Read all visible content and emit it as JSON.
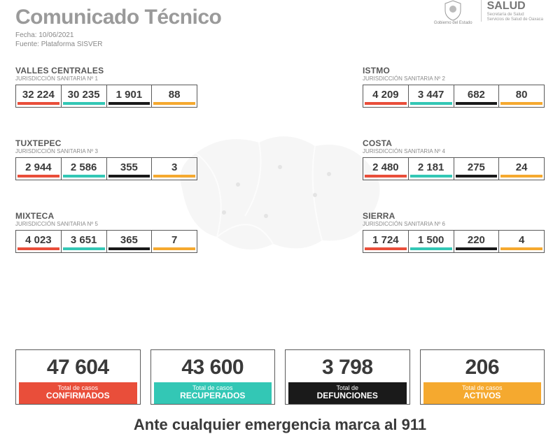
{
  "header": {
    "title": "Comunicado Técnico",
    "date_label": "Fecha:",
    "date": "10/06/2021",
    "source_label": "Fuente:",
    "source": "Plataforma SISVER",
    "gov_label": "Gobierno del Estado",
    "salud_title": "SALUD",
    "salud_sub1": "Secretaría de Salud",
    "salud_sub2": "Servicios de Salud de Oaxaca"
  },
  "colors": {
    "confirmed": "#e94e3a",
    "recovered": "#33c7b5",
    "deaths": "#1a1a1a",
    "active": "#f5a92f",
    "border": "#5a5a5a"
  },
  "regions": [
    {
      "name": "VALLES CENTRALES",
      "sub": "JURISDICCIÓN SANITARIA Nº 1",
      "side": "left",
      "values": [
        "32 224",
        "30 235",
        "1 901",
        "88"
      ]
    },
    {
      "name": "ISTMO",
      "sub": "JURISDICCIÓN SANITARIA Nº 2",
      "side": "right",
      "values": [
        "4 209",
        "3 447",
        "682",
        "80"
      ]
    },
    {
      "name": "TUXTEPEC",
      "sub": "JURISDICCIÓN SANITARIA Nº 3",
      "side": "left",
      "values": [
        "2 944",
        "2 586",
        "355",
        "3"
      ]
    },
    {
      "name": "COSTA",
      "sub": "JURISDICCIÓN SANITARIA Nº 4",
      "side": "right",
      "values": [
        "2 480",
        "2 181",
        "275",
        "24"
      ]
    },
    {
      "name": "MIXTECA",
      "sub": "JURISDICCIÓN SANITARIA Nº 5",
      "side": "left",
      "values": [
        "4 023",
        "3 651",
        "365",
        "7"
      ]
    },
    {
      "name": "SIERRA",
      "sub": "JURISDICCIÓN SANITARIA Nº 6",
      "side": "right",
      "values": [
        "1 724",
        "1 500",
        "220",
        "4"
      ]
    }
  ],
  "totals": [
    {
      "value": "47 604",
      "line1": "Total de casos",
      "line2": "CONFIRMADOS",
      "color": "#e94e3a"
    },
    {
      "value": "43 600",
      "line1": "Total de casos",
      "line2": "RECUPERADOS",
      "color": "#33c7b5"
    },
    {
      "value": "3 798",
      "line1": "Total de",
      "line2": "DEFUNCIONES",
      "color": "#1a1a1a"
    },
    {
      "value": "206",
      "line1": "Total de casos",
      "line2": "ACTIVOS",
      "color": "#f5a92f"
    }
  ],
  "footer": "Ante cualquier emergencia marca al 911"
}
